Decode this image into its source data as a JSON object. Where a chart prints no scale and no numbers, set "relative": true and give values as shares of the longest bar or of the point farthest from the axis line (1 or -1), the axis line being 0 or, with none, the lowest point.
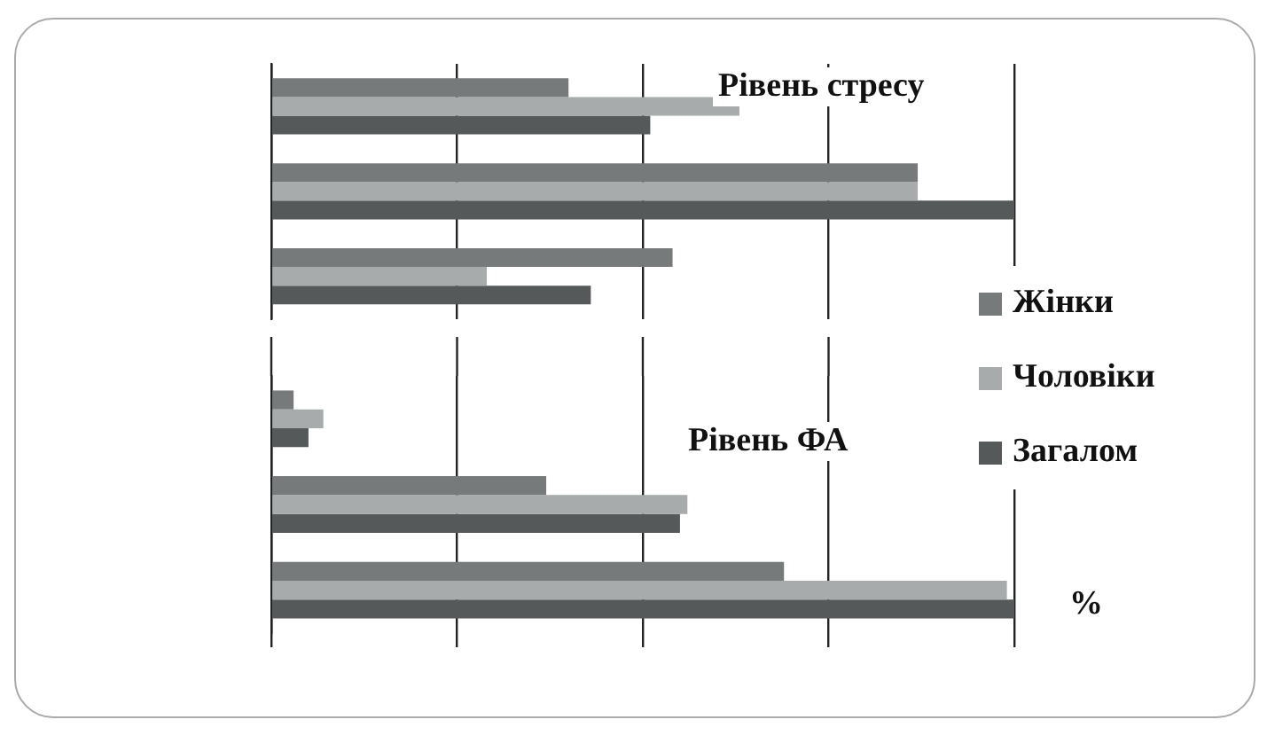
{
  "chart_data": [
    {
      "type": "bar",
      "orientation": "horizontal",
      "relative": true,
      "grid": "x",
      "title": "Рівень стресу",
      "categories": [
        null,
        null,
        null
      ],
      "series": [
        {
          "color": "#767a7b",
          "values": [
            0.4,
            0.87,
            0.54
          ]
        },
        {
          "color": "#a7abab",
          "values": [
            0.63,
            0.87,
            0.29
          ]
        },
        {
          "color": "#555959",
          "values": [
            0.51,
            1,
            0.43
          ]
        }
      ]
    },
    {
      "type": "bar",
      "orientation": "horizontal",
      "relative": true,
      "grid": "x",
      "title": "Рівень ФА",
      "legend": "right",
      "categories": [
        null,
        null,
        null
      ],
      "series": [
        {
          "name": "Жінки",
          "color": "#767a7b",
          "values": [
            0.03,
            0.37,
            0.69
          ]
        },
        {
          "name": "Чоловіки",
          "color": "#a7abab",
          "values": [
            0.07,
            0.56,
            0.99
          ]
        },
        {
          "name": "Загалом",
          "color": "#555959",
          "values": [
            0.05,
            0.55,
            1
          ]
        }
      ],
      "annotations": [
        "%"
      ]
    }
  ]
}
